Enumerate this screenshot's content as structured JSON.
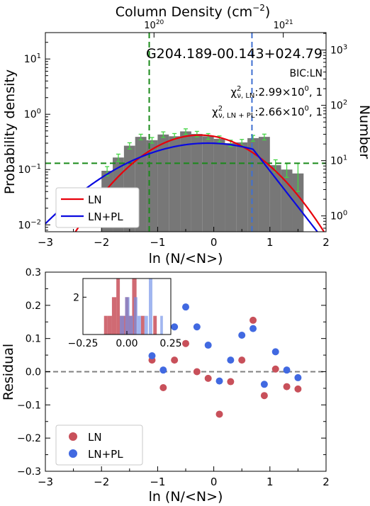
{
  "chart_data": [
    {
      "type": "bar",
      "object_name": "G204.189-00.143+024.79",
      "model_selection": "BIC:LN",
      "chi2_ln": {
        "text": "2.99×10",
        "exp": "0",
        "tail": ", 1"
      },
      "chi2_lnpl": {
        "text": "2.66×10",
        "exp": "0",
        "tail": ", 1"
      },
      "top_axis_title": "Column Density (cm",
      "top_axis_title_exp": "−2",
      "top_axis_title_end": ")",
      "top_ticks": [
        {
          "base": "10",
          "exp": "20",
          "value": 1e+20
        },
        {
          "base": "10",
          "exp": "21",
          "value": 1e+21
        }
      ],
      "xlabel": "ln (N/<N>)",
      "ylabel_left": "Probability density",
      "ylabel_right": "Number",
      "xlim": [
        -3,
        2
      ],
      "ylim_log": [
        0.0075,
        30
      ],
      "xticks": [
        "−3",
        "−2",
        "−1",
        "0",
        "1",
        "2"
      ],
      "yticks_left": [
        {
          "base": "10",
          "exp": "−2",
          "value": 0.01
        },
        {
          "base": "10",
          "exp": "−1",
          "value": 0.1
        },
        {
          "base": "10",
          "exp": "0",
          "value": 1
        },
        {
          "base": "10",
          "exp": "1",
          "value": 10
        }
      ],
      "yticks_right": [
        {
          "base": "10",
          "exp": "0",
          "value": 1
        },
        {
          "base": "10",
          "exp": "1",
          "value": 10
        },
        {
          "base": "10",
          "exp": "2",
          "value": 100
        },
        {
          "base": "10",
          "exp": "3",
          "value": 1000
        }
      ],
      "histogram": {
        "color": "#777777",
        "bin_edges": [
          -2.0,
          -1.8,
          -1.6,
          -1.4,
          -1.2,
          -1.0,
          -0.8,
          -0.6,
          -0.4,
          -0.2,
          0.0,
          0.2,
          0.4,
          0.6,
          0.8,
          1.0,
          1.2,
          1.4,
          1.6
        ],
        "values": [
          0.095,
          0.165,
          0.27,
          0.39,
          0.34,
          0.43,
          0.4,
          0.49,
          0.44,
          0.4,
          0.36,
          0.3,
          0.31,
          0.37,
          0.39,
          0.12,
          0.1,
          0.085
        ],
        "errors": [
          0.018,
          0.025,
          0.035,
          0.045,
          0.04,
          0.05,
          0.048,
          0.055,
          0.05,
          0.047,
          0.045,
          0.04,
          0.041,
          0.045,
          0.047,
          0.03,
          0.028,
          0.045
        ]
      },
      "series": [
        {
          "name": "LN",
          "color": "#e8000b",
          "kind": "lognormal",
          "peak": 0.42,
          "mu": -0.25,
          "sigma": 0.78
        },
        {
          "name": "LN+PL",
          "color": "#0a0ae0",
          "kind": "lognormal_powerlaw",
          "peak": 0.3,
          "mu": -0.1,
          "sigma": 1.12,
          "break": 0.7,
          "slope": -3.0
        }
      ],
      "lines": [
        {
          "orientation": "vertical",
          "x": -1.15,
          "color": "#1a8a1a",
          "style": "dashed"
        },
        {
          "orientation": "vertical",
          "x": 0.68,
          "color": "#4070d0",
          "style": "dashed"
        },
        {
          "orientation": "horizontal",
          "y": 0.13,
          "color": "#1a8a1a",
          "style": "dashed"
        }
      ],
      "legend": {
        "position": "lower-left",
        "entries": [
          "LN",
          "LN+PL"
        ]
      }
    },
    {
      "type": "scatter",
      "xlabel": "ln (N/<N>)",
      "ylabel": "Residual",
      "xlim": [
        -3,
        2
      ],
      "ylim": [
        -0.3,
        0.3
      ],
      "xticks": [
        "−3",
        "−2",
        "−1",
        "0",
        "1",
        "2"
      ],
      "yticks": [
        "−0.3",
        "−0.2",
        "−0.1",
        "0.0",
        "0.1",
        "0.2",
        "0.3"
      ],
      "zero_line": {
        "y": 0,
        "color": "#808080",
        "style": "dashed"
      },
      "series": [
        {
          "name": "LN",
          "color": "#c8505a",
          "x": [
            -1.1,
            -0.9,
            -0.7,
            -0.5,
            -0.3,
            -0.1,
            0.1,
            0.3,
            0.5,
            0.7,
            0.9,
            1.1,
            1.3,
            1.5
          ],
          "y": [
            0.035,
            -0.048,
            0.035,
            0.085,
            0.0,
            -0.02,
            -0.128,
            -0.03,
            0.035,
            0.155,
            -0.072,
            0.008,
            -0.045,
            -0.052
          ]
        },
        {
          "name": "LN+PL",
          "color": "#4169e1",
          "x": [
            -1.1,
            -0.9,
            -0.7,
            -0.5,
            -0.3,
            -0.1,
            0.1,
            0.3,
            0.5,
            0.7,
            0.9,
            1.1,
            1.3,
            1.5
          ],
          "y": [
            0.048,
            0.005,
            0.135,
            0.195,
            0.135,
            0.08,
            -0.028,
            0.035,
            0.11,
            0.13,
            -0.038,
            0.06,
            0.005,
            -0.018
          ]
        }
      ],
      "legend": {
        "position": "lower-left",
        "entries": [
          "LN",
          "LN+PL"
        ]
      },
      "inset": {
        "type": "histogram",
        "xlim": [
          -0.25,
          0.25
        ],
        "ylim": [
          0,
          3
        ],
        "xticks": [
          "−0.25",
          "0.00",
          "0.25"
        ],
        "yticks": [
          "2"
        ],
        "series": [
          {
            "name": "LN",
            "color": "#c8505a",
            "bins": [
              {
                "x0": -0.13,
                "x1": -0.11,
                "n": 1
              },
              {
                "x0": -0.11,
                "x1": -0.085,
                "n": 1
              },
              {
                "x0": -0.085,
                "x1": -0.06,
                "n": 2
              },
              {
                "x0": -0.06,
                "x1": -0.04,
                "n": 3
              },
              {
                "x0": -0.04,
                "x1": -0.01,
                "n": 1
              },
              {
                "x0": -0.01,
                "x1": 0.01,
                "n": 2
              },
              {
                "x0": 0.01,
                "x1": 0.03,
                "n": 1
              },
              {
                "x0": 0.03,
                "x1": 0.055,
                "n": 3
              },
              {
                "x0": 0.08,
                "x1": 0.1,
                "n": 1
              },
              {
                "x0": 0.15,
                "x1": 0.17,
                "n": 1
              }
            ]
          },
          {
            "name": "LN+PL",
            "color": "#6f8fe8",
            "bins": [
              {
                "x0": -0.04,
                "x1": -0.015,
                "n": 1
              },
              {
                "x0": -0.01,
                "x1": 0.015,
                "n": 2
              },
              {
                "x0": 0.015,
                "x1": 0.035,
                "n": 1
              },
              {
                "x0": 0.04,
                "x1": 0.06,
                "n": 2
              },
              {
                "x0": 0.06,
                "x1": 0.08,
                "n": 1
              },
              {
                "x0": 0.1,
                "x1": 0.12,
                "n": 1
              },
              {
                "x0": 0.125,
                "x1": 0.145,
                "n": 3
              },
              {
                "x0": 0.19,
                "x1": 0.205,
                "n": 1
              }
            ]
          }
        ]
      }
    }
  ]
}
